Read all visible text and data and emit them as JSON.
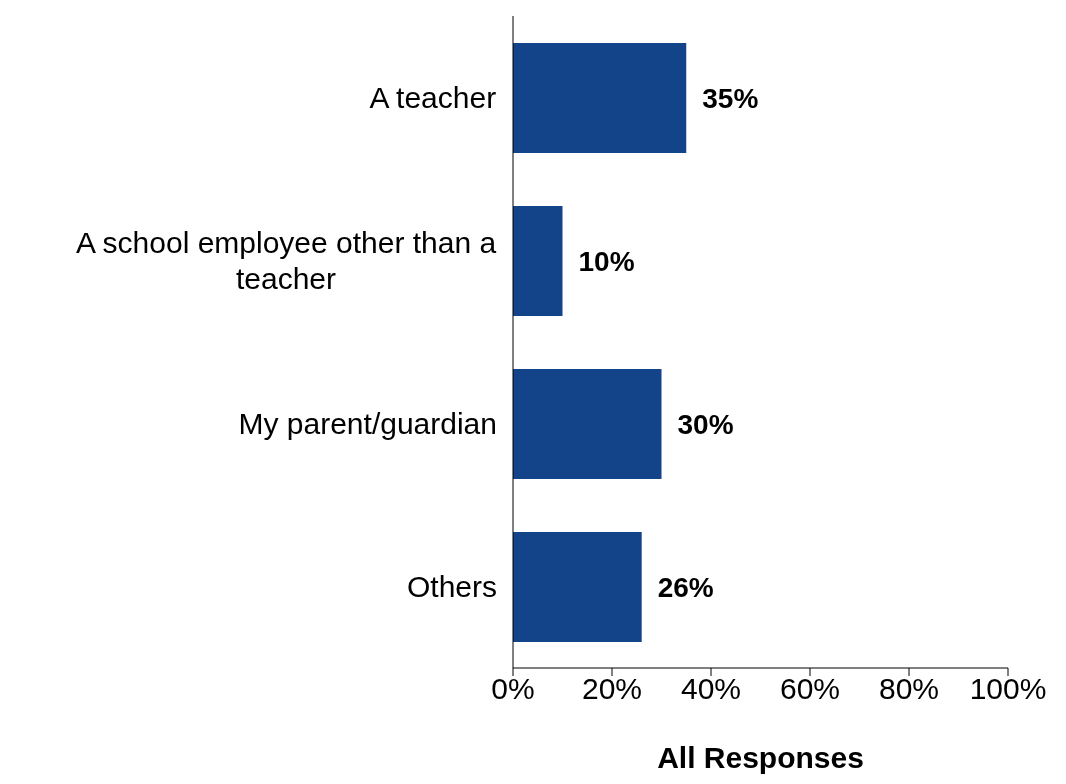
{
  "chart_data": {
    "type": "bar",
    "orientation": "horizontal",
    "xlabel": "All Responses",
    "categories": [
      "A teacher",
      "A school employee other than a teacher",
      "My parent/guardian",
      "Others"
    ],
    "values": [
      35,
      10,
      30,
      26
    ],
    "color": "#134389",
    "value_labels": [
      "35%",
      "10%",
      "30%",
      "26%"
    ],
    "xlim": [
      0,
      100
    ],
    "xticks": [
      {
        "value": 0,
        "label": "0%"
      },
      {
        "value": 20,
        "label": "20%"
      },
      {
        "value": 40,
        "label": "40%"
      },
      {
        "value": 60,
        "label": "60%"
      },
      {
        "value": 80,
        "label": "80%"
      },
      {
        "value": 100,
        "label": "100%"
      }
    ],
    "grid": false,
    "legend": false
  }
}
